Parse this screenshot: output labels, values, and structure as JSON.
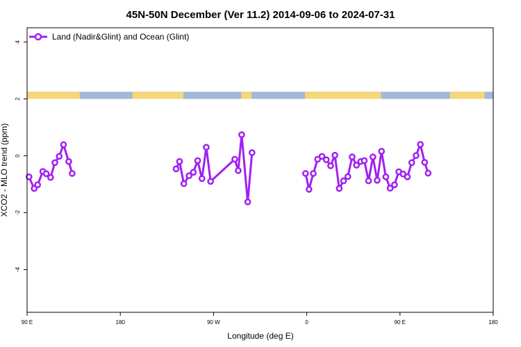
{
  "chart_data": {
    "type": "line",
    "title": "45N-50N December (Ver 11.2)   2014-09-06 to 2024-07-31",
    "xlabel": "Longitude (deg E)",
    "ylabel": "XCO2 - MLO trend (ppm)",
    "xlim": [
      -90,
      180
    ],
    "ylim": [
      -5.5,
      4.5
    ],
    "x_ticks": [
      {
        "value": -90,
        "label": "90 E"
      },
      {
        "value": -36,
        "label": "180"
      },
      {
        "value": 18,
        "label": "90 W"
      },
      {
        "value": 72,
        "label": "0"
      },
      {
        "value": 126,
        "label": "90 E"
      },
      {
        "value": 180,
        "label": "180"
      }
    ],
    "y_ticks": [
      {
        "value": -4,
        "label": "-4"
      },
      {
        "value": -2,
        "label": "-2"
      },
      {
        "value": 0,
        "label": "0"
      },
      {
        "value": 2,
        "label": "2"
      },
      {
        "value": 4,
        "label": "4"
      }
    ],
    "grid": false,
    "legend": {
      "position": "top-left",
      "entries": [
        "Land (Nadir&Glint) and Ocean (Glint)"
      ]
    },
    "land_ocean_strip": {
      "y_range": [
        2.0,
        2.25
      ],
      "land_color": "#f5d77a",
      "ocean_color": "#a3b9d9",
      "land_spans": [
        [
          -90,
          -59.5
        ],
        [
          -83,
          -77
        ],
        [
          -29,
          0.5
        ],
        [
          34,
          40
        ],
        [
          71,
          115
        ],
        [
          155,
          175
        ]
      ]
    },
    "series": [
      {
        "name": "Land (Nadir&Glint) and Ocean (Glint)",
        "color": "#a020f0",
        "segments": [
          [
            {
              "x": -88.9,
              "y": -0.74
            },
            {
              "x": -85.9,
              "y": -1.15
            },
            {
              "x": -83.9,
              "y": -1.02
            },
            {
              "x": -80.9,
              "y": -0.55
            },
            {
              "x": -78.9,
              "y": -0.63
            },
            {
              "x": -76.4,
              "y": -0.76
            },
            {
              "x": -73.9,
              "y": -0.24
            },
            {
              "x": -71.4,
              "y": -0.02
            },
            {
              "x": -68.9,
              "y": 0.39
            },
            {
              "x": -65.9,
              "y": -0.2
            },
            {
              "x": -63.9,
              "y": -0.62
            }
          ],
          [
            {
              "x": -3.7,
              "y": -0.46
            },
            {
              "x": -1.7,
              "y": -0.2
            },
            {
              "x": 0.8,
              "y": -0.98
            },
            {
              "x": 3.8,
              "y": -0.7
            },
            {
              "x": 6.3,
              "y": -0.58
            },
            {
              "x": 8.8,
              "y": -0.17
            },
            {
              "x": 11.3,
              "y": -0.8
            },
            {
              "x": 13.8,
              "y": 0.3
            },
            {
              "x": 16.3,
              "y": -0.9
            },
            {
              "x": 30.3,
              "y": -0.12
            },
            {
              "x": 32.3,
              "y": -0.52
            },
            {
              "x": 34.3,
              "y": 0.74
            },
            {
              "x": 37.8,
              "y": -1.62
            },
            {
              "x": 40.3,
              "y": 0.11
            }
          ],
          [
            {
              "x": 71.3,
              "y": -0.62
            },
            {
              "x": 73.3,
              "y": -1.18
            },
            {
              "x": 75.8,
              "y": -0.62
            },
            {
              "x": 78.3,
              "y": -0.12
            },
            {
              "x": 80.8,
              "y": -0.02
            },
            {
              "x": 83.3,
              "y": -0.14
            },
            {
              "x": 85.8,
              "y": -0.35
            },
            {
              "x": 88.3,
              "y": 0.02
            },
            {
              "x": 90.8,
              "y": -1.15
            },
            {
              "x": 93.3,
              "y": -0.88
            },
            {
              "x": 95.8,
              "y": -0.73
            },
            {
              "x": 98.3,
              "y": -0.04
            },
            {
              "x": 100.8,
              "y": -0.33
            },
            {
              "x": 103.3,
              "y": -0.2
            },
            {
              "x": 105.3,
              "y": -0.17
            },
            {
              "x": 107.8,
              "y": -0.88
            },
            {
              "x": 110.3,
              "y": -0.04
            },
            {
              "x": 112.8,
              "y": -0.86
            },
            {
              "x": 115.3,
              "y": 0.16
            },
            {
              "x": 117.8,
              "y": -0.74
            },
            {
              "x": 120.3,
              "y": -1.14
            },
            {
              "x": 122.8,
              "y": -1.02
            },
            {
              "x": 125.3,
              "y": -0.56
            },
            {
              "x": 127.8,
              "y": -0.64
            },
            {
              "x": 130.3,
              "y": -0.74
            },
            {
              "x": 132.8,
              "y": -0.24
            },
            {
              "x": 135.3,
              "y": 0.01
            },
            {
              "x": 137.8,
              "y": 0.4
            },
            {
              "x": 140.3,
              "y": -0.23
            },
            {
              "x": 142.3,
              "y": -0.61
            }
          ]
        ]
      }
    ]
  }
}
